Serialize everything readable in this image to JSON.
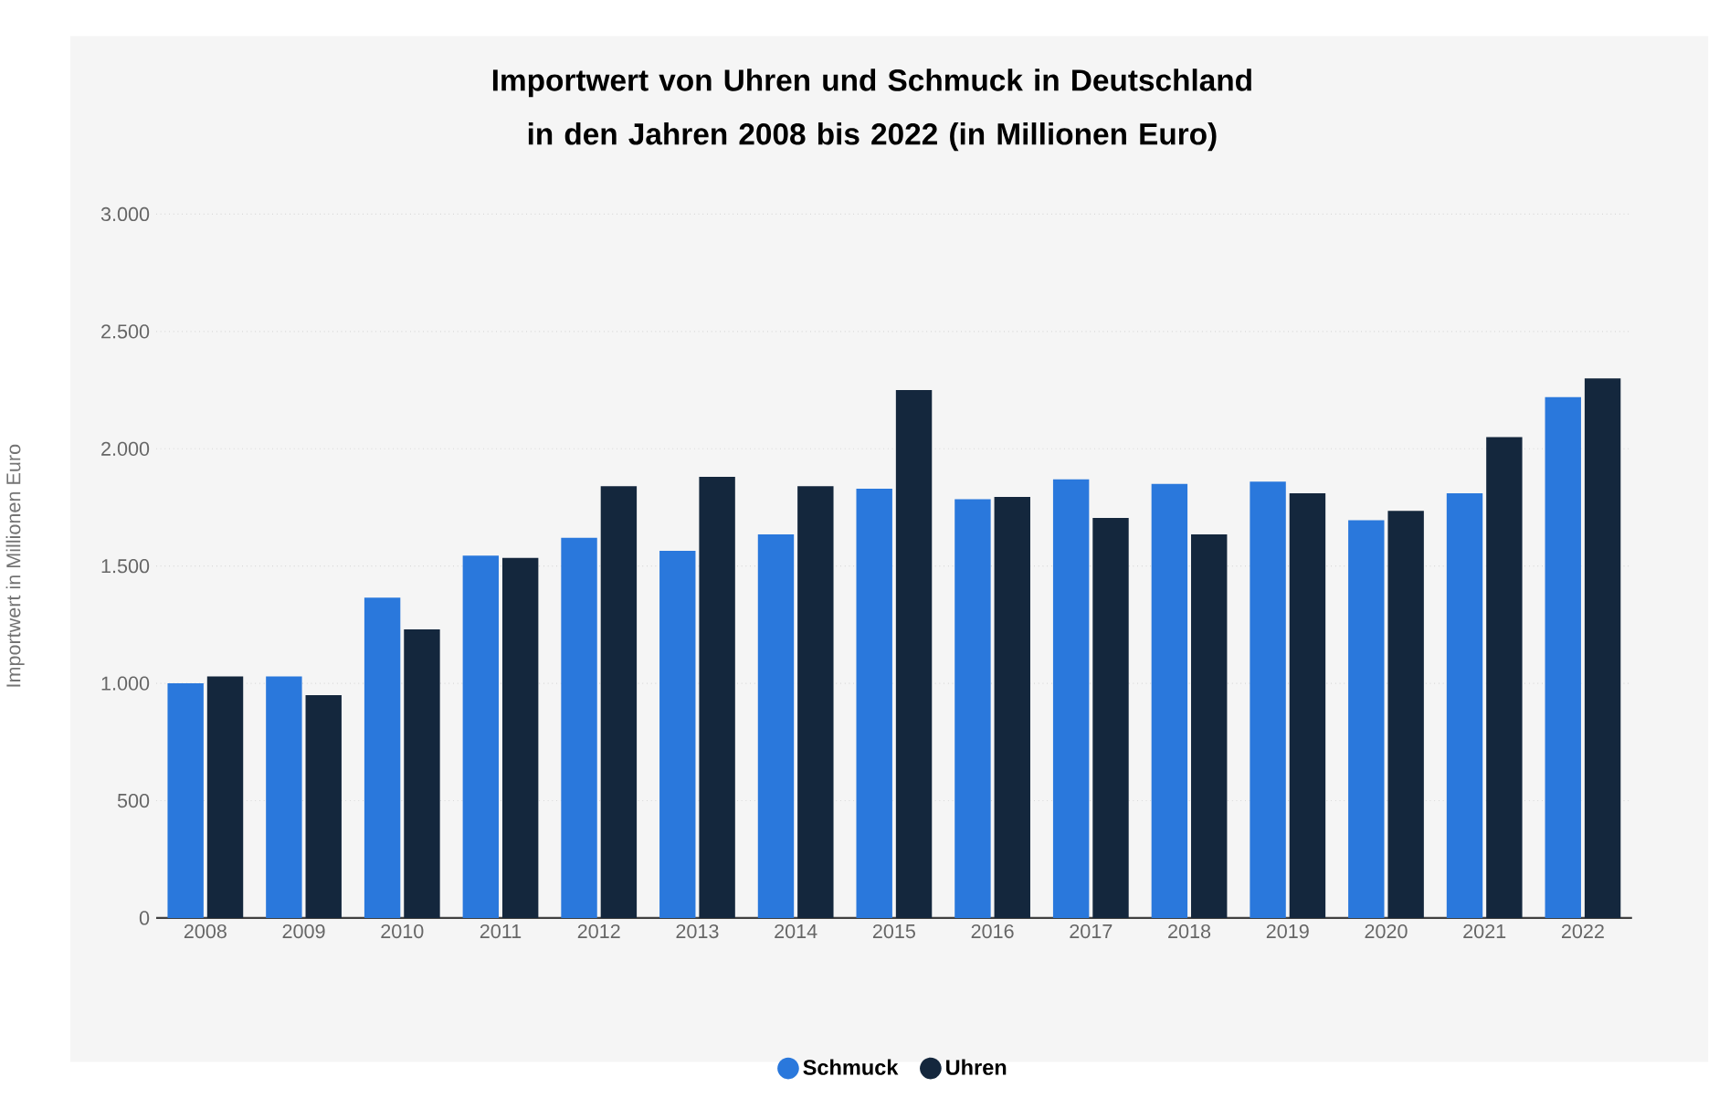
{
  "chart_data": {
    "type": "bar",
    "title": "Importwert von Uhren und Schmuck in Deutschland in den Jahren 2008 bis 2022 (in Millionen Euro)",
    "ylabel": "Importwert in Millionen Euro",
    "categories": [
      "2008",
      "2009",
      "2010",
      "2011",
      "2012",
      "2013",
      "2014",
      "2015",
      "2016",
      "2017",
      "2018",
      "2019",
      "2020",
      "2021",
      "2022"
    ],
    "series": [
      {
        "name": "Schmuck",
        "color": "#2a78dc",
        "values": [
          1000,
          1030,
          1365,
          1545,
          1620,
          1565,
          1635,
          1830,
          1785,
          1870,
          1850,
          1860,
          1695,
          1810,
          2220
        ]
      },
      {
        "name": "Uhren",
        "color": "#14273d",
        "values": [
          1030,
          950,
          1230,
          1535,
          1840,
          1880,
          1840,
          2250,
          1795,
          1705,
          1635,
          1810,
          1735,
          2050,
          2300
        ]
      }
    ],
    "ylim": [
      0,
      3000
    ],
    "yticks": [
      0,
      500,
      {
        "value": 1000,
        "label": "1.000"
      },
      {
        "value": 1500,
        "label": "1.500"
      },
      {
        "value": 2000,
        "label": "2.000"
      },
      {
        "value": 2500,
        "label": "2.500"
      },
      {
        "value": 3000,
        "label": "3.000"
      }
    ],
    "grid": "y",
    "legend": "bottom"
  }
}
